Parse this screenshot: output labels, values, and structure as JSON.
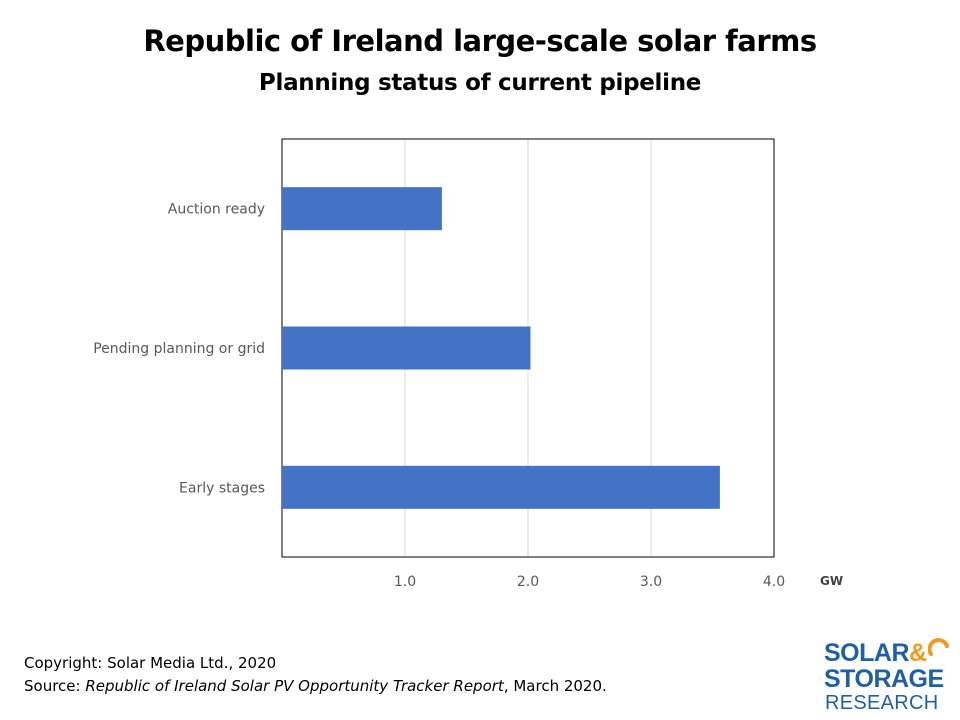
{
  "chart_data": {
    "type": "bar",
    "orientation": "horizontal",
    "title": "Republic of Ireland large-scale solar farms",
    "subtitle": "Planning status of current pipeline",
    "categories": [
      "Auction ready",
      "Pending planning or grid",
      "Early stages"
    ],
    "values": [
      1.3,
      2.02,
      3.56
    ],
    "xlim": [
      0,
      4.0
    ],
    "xticks": [
      "1.0",
      "2.0",
      "3.0",
      "4.0"
    ],
    "xtick_values": [
      1,
      2,
      3,
      4
    ],
    "xlabel": "GW",
    "ylabel": "",
    "grid": "vertical",
    "legend": "none",
    "bar_color": "#4472c4"
  },
  "footer": {
    "copyright": "Copyright: Solar Media Ltd., 2020",
    "source_prefix": "Source: ",
    "source_title": "Republic of Ireland Solar PV Opportunity Tracker Report",
    "source_suffix": ", March 2020."
  },
  "logo": {
    "line1": "SOLAR",
    "amp": "&",
    "line2": "STORAGE",
    "line3": "RESEARCH",
    "primary_color": "#1f5fa8",
    "accent_color": "#f39a1e"
  }
}
